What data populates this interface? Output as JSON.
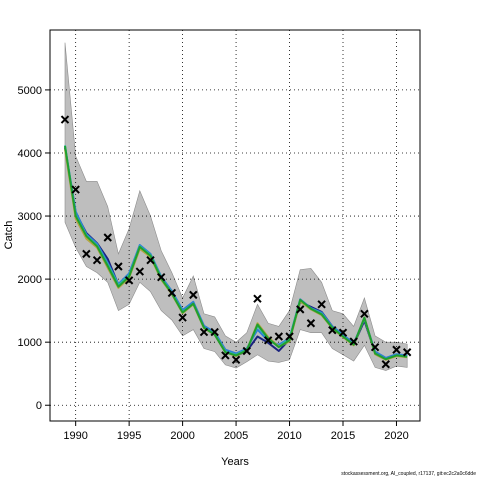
{
  "chart_data": {
    "type": "line",
    "title": "",
    "xlabel": "Years",
    "ylabel": "Catch",
    "xlim": [
      1987.6,
      2022.2
    ],
    "ylim": [
      -250,
      5950
    ],
    "xticks": [
      1990,
      1995,
      2000,
      2005,
      2010,
      2015,
      2020
    ],
    "yticks": [
      0,
      1000,
      2000,
      3000,
      4000,
      5000
    ],
    "grid": true,
    "legend": "none",
    "band_color": "#bebebe",
    "band": {
      "x": [
        1989,
        1990,
        1991,
        1992,
        1993,
        1994,
        1995,
        1996,
        1997,
        1998,
        1999,
        2000,
        2001,
        2002,
        2003,
        2004,
        2005,
        2006,
        2007,
        2008,
        2009,
        2010,
        2011,
        2012,
        2013,
        2014,
        2015,
        2016,
        2017,
        2018,
        2019,
        2020,
        2021
      ],
      "lower": [
        2900,
        2500,
        2200,
        2100,
        1950,
        1500,
        1600,
        1950,
        1800,
        1500,
        1350,
        1100,
        1200,
        900,
        850,
        640,
        590,
        690,
        800,
        700,
        680,
        720,
        1200,
        1150,
        1150,
        900,
        800,
        700,
        950,
        600,
        550,
        620,
        600
      ],
      "upper": [
        5750,
        3950,
        3550,
        3550,
        3150,
        2400,
        2800,
        3400,
        3000,
        2450,
        2100,
        1700,
        2050,
        1450,
        1400,
        1100,
        1000,
        1150,
        1600,
        1300,
        1250,
        1500,
        2150,
        2170,
        1950,
        1500,
        1450,
        1250,
        1700,
        1100,
        1000,
        1000,
        970
      ]
    },
    "series": [
      {
        "color": "#1a237e",
        "values": [
          4080,
          3050,
          2730,
          2570,
          2320,
          1910,
          2080,
          2500,
          2380,
          2020,
          1800,
          1500,
          1630,
          1230,
          1120,
          850,
          780,
          860,
          1090,
          990,
          860,
          1040,
          1640,
          1560,
          1480,
          1250,
          1120,
          960,
          1340,
          830,
          740,
          800,
          780
        ]
      },
      {
        "color": "#2f7fd3",
        "values": [
          4100,
          3070,
          2710,
          2560,
          2260,
          1920,
          2090,
          2540,
          2400,
          2040,
          1810,
          1510,
          1640,
          1260,
          1160,
          880,
          820,
          900,
          1200,
          1020,
          960,
          1060,
          1680,
          1540,
          1470,
          1250,
          1120,
          980,
          1370,
          850,
          750,
          810,
          790
        ]
      },
      {
        "color": "#2bbfa0",
        "values": [
          4120,
          3010,
          2690,
          2530,
          2230,
          1900,
          2060,
          2520,
          2380,
          2020,
          1780,
          1480,
          1610,
          1230,
          1130,
          850,
          800,
          880,
          1260,
          1050,
          930,
          1050,
          1670,
          1530,
          1450,
          1230,
          1090,
          960,
          1380,
          820,
          730,
          790,
          770
        ]
      },
      {
        "color": "#b5a642",
        "values": [
          4060,
          2960,
          2640,
          2500,
          2180,
          1860,
          2020,
          2480,
          2350,
          1990,
          1760,
          1460,
          1600,
          1220,
          1120,
          840,
          780,
          870,
          1300,
          1080,
          930,
          1010,
          1650,
          1520,
          1430,
          1220,
          1080,
          950,
          1390,
          810,
          720,
          780,
          760
        ]
      },
      {
        "color": "#1fa02f",
        "values": [
          4110,
          3000,
          2680,
          2520,
          2210,
          1880,
          2040,
          2510,
          2370,
          2010,
          1770,
          1470,
          1610,
          1230,
          1120,
          840,
          790,
          870,
          1280,
          1060,
          920,
          1030,
          1670,
          1530,
          1440,
          1230,
          1090,
          960,
          1390,
          820,
          730,
          790,
          770
        ]
      }
    ],
    "observed": {
      "marker": "x",
      "x": [
        1989,
        1990,
        1991,
        1992,
        1993,
        1994,
        1995,
        1996,
        1997,
        1998,
        1999,
        2000,
        2001,
        2002,
        2003,
        2004,
        2005,
        2006,
        2007,
        2008,
        2009,
        2010,
        2011,
        2012,
        2013,
        2014,
        2015,
        2016,
        2017,
        2018,
        2019,
        2020,
        2021
      ],
      "y": [
        4530,
        3420,
        2400,
        2300,
        2660,
        2200,
        1980,
        2120,
        2300,
        2030,
        1780,
        1390,
        1750,
        1160,
        1160,
        790,
        720,
        860,
        1690,
        1030,
        1090,
        1090,
        1520,
        1300,
        1600,
        1190,
        1150,
        1010,
        1450,
        920,
        650,
        880,
        840
      ]
    }
  },
  "footer": {
    "text": "stockassessment.org, AI_coupled, r17137, git:ec2c2a0c6dde"
  }
}
